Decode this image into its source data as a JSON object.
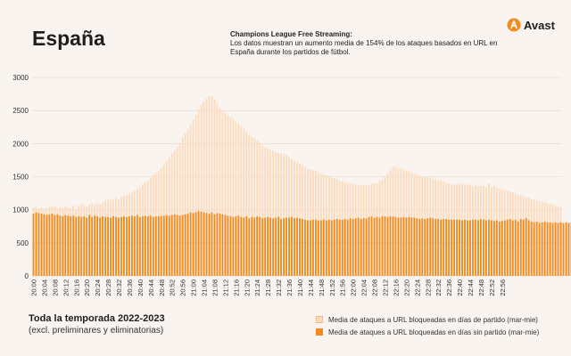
{
  "header": {
    "country": "España",
    "headline_title": "Champions League Free Streaming:",
    "headline_text": "Los datos muestran un aumento media de 154% de los ataques basados en URL en España durante los partidos de fútbol.",
    "logo_text": "Avast"
  },
  "footer": {
    "title": "Toda la temporada 2022-2023",
    "subtitle": "(excl. preliminares y eliminatorias)"
  },
  "colors": {
    "match": "#fbdcbf",
    "nomatch": "#f28a1e",
    "grid": "#ddd6ce",
    "logo": "#f28a1e"
  },
  "chart_data": {
    "type": "bar",
    "title": "",
    "xlabel": "",
    "ylabel": "",
    "ylim": [
      0,
      3000
    ],
    "yticks": [
      0,
      500,
      1000,
      1500,
      2000,
      2500,
      3000
    ],
    "grid": true,
    "legend_position": "bottom-right",
    "start_time": "20:00",
    "interval_minutes": 1,
    "tick_labels": [
      "20:00",
      "20:04",
      "20:08",
      "20:12",
      "20:16",
      "20:20",
      "20:24",
      "20:28",
      "20:32",
      "20:36",
      "20:40",
      "20:44",
      "20:48",
      "20:52",
      "20:56",
      "21:00",
      "21:04",
      "21:08",
      "21:12",
      "21:16",
      "21:20",
      "21:24",
      "21:28",
      "21:32",
      "21:36",
      "21:40",
      "21:44",
      "21:48",
      "21:52",
      "21:56",
      "22:00",
      "22:04",
      "22:08",
      "22:12",
      "22:16",
      "22:20",
      "22:24",
      "22:28",
      "22:32",
      "22:36",
      "22:40",
      "22:44",
      "22:48",
      "22:52",
      "22:56"
    ],
    "series": [
      {
        "name": "Media de ataques a URL bloqueadas en días de partido (mar-mie)",
        "values": [
          1030,
          1040,
          1020,
          1030,
          1000,
          1020,
          1040,
          1050,
          1060,
          1020,
          1040,
          1030,
          1060,
          1030,
          1020,
          1060,
          1010,
          1070,
          1090,
          1070,
          1050,
          1080,
          1100,
          1080,
          1100,
          1080,
          1110,
          1140,
          1160,
          1150,
          1150,
          1180,
          1150,
          1200,
          1210,
          1220,
          1250,
          1270,
          1290,
          1310,
          1340,
          1390,
          1410,
          1440,
          1480,
          1530,
          1560,
          1590,
          1630,
          1680,
          1740,
          1790,
          1850,
          1900,
          1950,
          2010,
          2090,
          2150,
          2210,
          2280,
          2360,
          2440,
          2520,
          2580,
          2630,
          2680,
          2710,
          2720,
          2670,
          2600,
          2540,
          2500,
          2460,
          2430,
          2400,
          2370,
          2330,
          2300,
          2260,
          2230,
          2180,
          2130,
          2110,
          2080,
          2040,
          2010,
          1970,
          1950,
          1930,
          1900,
          1890,
          1870,
          1860,
          1850,
          1840,
          1820,
          1790,
          1760,
          1740,
          1720,
          1700,
          1670,
          1640,
          1620,
          1610,
          1600,
          1590,
          1560,
          1540,
          1530,
          1520,
          1510,
          1490,
          1480,
          1460,
          1430,
          1430,
          1410,
          1400,
          1390,
          1390,
          1380,
          1380,
          1370,
          1370,
          1380,
          1370,
          1400,
          1400,
          1400,
          1440,
          1450,
          1500,
          1550,
          1600,
          1640,
          1650,
          1620,
          1620,
          1610,
          1590,
          1580,
          1560,
          1550,
          1530,
          1510,
          1500,
          1490,
          1490,
          1480,
          1470,
          1460,
          1450,
          1440,
          1420,
          1410,
          1400,
          1390,
          1380,
          1390,
          1390,
          1400,
          1380,
          1380,
          1370,
          1360,
          1380,
          1350,
          1360,
          1360,
          1350,
          1390,
          1340,
          1360,
          1340,
          1320,
          1310,
          1300,
          1280,
          1270,
          1260,
          1240,
          1230,
          1220,
          1200,
          1190,
          1180,
          1160,
          1150,
          1140,
          1130,
          1120,
          1110,
          1100,
          1090,
          1080,
          1070,
          1060,
          1040
        ]
      },
      {
        "name": "Media de ataques a URL bloqueadas en días sin partido (mar-mie)",
        "values": [
          940,
          960,
          950,
          940,
          930,
          920,
          930,
          940,
          920,
          930,
          910,
          900,
          920,
          910,
          900,
          910,
          890,
          900,
          890,
          900,
          880,
          920,
          890,
          910,
          900,
          880,
          900,
          890,
          890,
          880,
          900,
          890,
          880,
          890,
          900,
          890,
          900,
          910,
          900,
          920,
          890,
          900,
          910,
          900,
          910,
          890,
          900,
          900,
          900,
          910,
          920,
          910,
          920,
          930,
          920,
          910,
          920,
          930,
          940,
          960,
          950,
          960,
          980,
          970,
          960,
          950,
          940,
          960,
          930,
          950,
          940,
          930,
          920,
          910,
          900,
          890,
          900,
          910,
          890,
          880,
          900,
          870,
          890,
          880,
          900,
          890,
          870,
          880,
          890,
          880,
          870,
          880,
          890,
          860,
          870,
          880,
          880,
          890,
          870,
          880,
          870,
          860,
          850,
          840,
          840,
          850,
          850,
          840,
          840,
          850,
          840,
          850,
          840,
          850,
          860,
          850,
          850,
          860,
          850,
          870,
          860,
          870,
          880,
          860,
          870,
          870,
          890,
          900,
          880,
          890,
          880,
          900,
          900,
          890,
          900,
          900,
          890,
          880,
          880,
          890,
          880,
          890,
          880,
          880,
          870,
          860,
          870,
          860,
          870,
          880,
          870,
          860,
          860,
          850,
          860,
          860,
          850,
          850,
          850,
          850,
          850,
          840,
          850,
          840,
          840,
          850,
          850,
          840,
          860,
          850,
          840,
          850,
          840,
          830,
          840,
          820,
          830,
          840,
          850,
          860,
          840,
          850,
          820,
          860,
          850,
          870,
          840,
          820,
          810,
          820,
          800,
          810,
          820,
          810,
          810,
          800,
          810,
          800,
          810,
          800,
          810,
          800,
          810
        ]
      }
    ]
  }
}
